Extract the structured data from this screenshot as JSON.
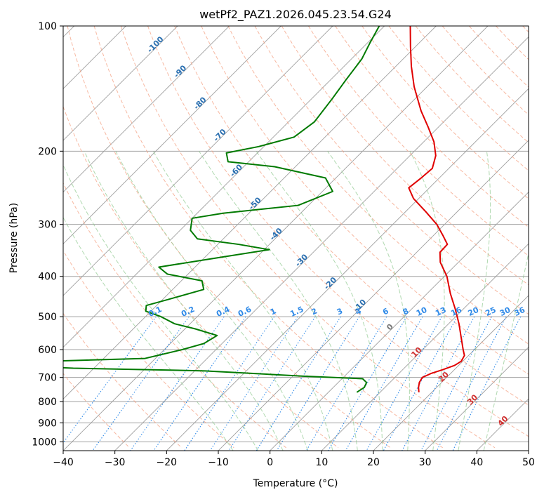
{
  "chart_data": {
    "type": "skew-t",
    "title": "wetPf2_PAZ1.2026.045.23.54.G24",
    "xlabel": "Temperature (°C)",
    "ylabel": "Pressure (hPa)",
    "xlim": [
      -40,
      50
    ],
    "ylim": [
      1050,
      100
    ],
    "x_ticks": [
      {
        "value": -40,
        "label": "−40"
      },
      {
        "value": -30,
        "label": "−30"
      },
      {
        "value": -20,
        "label": "−20"
      },
      {
        "value": -10,
        "label": "−10"
      },
      {
        "value": 0,
        "label": "0"
      },
      {
        "value": 10,
        "label": "10"
      },
      {
        "value": 20,
        "label": "20"
      },
      {
        "value": 30,
        "label": "30"
      },
      {
        "value": 40,
        "label": "40"
      },
      {
        "value": 50,
        "label": "50"
      }
    ],
    "y_ticks": [
      {
        "value": 100,
        "label": "100"
      },
      {
        "value": 200,
        "label": "200"
      },
      {
        "value": 300,
        "label": "300"
      },
      {
        "value": 400,
        "label": "400"
      },
      {
        "value": 500,
        "label": "500"
      },
      {
        "value": 600,
        "label": "600"
      },
      {
        "value": 700,
        "label": "700"
      },
      {
        "value": 800,
        "label": "800"
      },
      {
        "value": 900,
        "label": "900"
      },
      {
        "value": 1000,
        "label": "1000"
      }
    ],
    "temperature_profile": {
      "name": "Temperature",
      "color": "#e00000",
      "points": [
        {
          "p": 760,
          "t": 17.5
        },
        {
          "p": 740,
          "t": 16.5
        },
        {
          "p": 720,
          "t": 15.7
        },
        {
          "p": 700,
          "t": 15.3
        },
        {
          "p": 685,
          "t": 16.2
        },
        {
          "p": 670,
          "t": 17.8
        },
        {
          "p": 655,
          "t": 19.2
        },
        {
          "p": 640,
          "t": 19.7
        },
        {
          "p": 620,
          "t": 19.2
        },
        {
          "p": 600,
          "t": 17.8
        },
        {
          "p": 560,
          "t": 15.0
        },
        {
          "p": 520,
          "t": 12.0
        },
        {
          "p": 480,
          "t": 8.5
        },
        {
          "p": 440,
          "t": 4.5
        },
        {
          "p": 400,
          "t": 0.5
        },
        {
          "p": 370,
          "t": -3.5
        },
        {
          "p": 350,
          "t": -5.5
        },
        {
          "p": 335,
          "t": -5.6
        },
        {
          "p": 320,
          "t": -8.0
        },
        {
          "p": 300,
          "t": -11.5
        },
        {
          "p": 280,
          "t": -16.0
        },
        {
          "p": 260,
          "t": -21.0
        },
        {
          "p": 245,
          "t": -24.0
        },
        {
          "p": 232,
          "t": -23.5
        },
        {
          "p": 220,
          "t": -23.2
        },
        {
          "p": 205,
          "t": -25.0
        },
        {
          "p": 190,
          "t": -28.0
        },
        {
          "p": 175,
          "t": -32.0
        },
        {
          "p": 160,
          "t": -36.5
        },
        {
          "p": 140,
          "t": -42.5
        },
        {
          "p": 125,
          "t": -47.0
        },
        {
          "p": 112,
          "t": -51.0
        },
        {
          "p": 100,
          "t": -55.0
        }
      ]
    },
    "dewpoint_profile": {
      "name": "Dewpoint",
      "color": "#007a00",
      "points": [
        {
          "p": 760,
          "t": 5.5
        },
        {
          "p": 740,
          "t": 6.0
        },
        {
          "p": 720,
          "t": 5.5
        },
        {
          "p": 705,
          "t": 4.0
        },
        {
          "p": 695,
          "t": -8.0
        },
        {
          "p": 675,
          "t": -28.0
        },
        {
          "p": 665,
          "t": -54.0
        },
        {
          "p": 660,
          "t": -60.0
        },
        {
          "p": 640,
          "t": -60.0
        },
        {
          "p": 630,
          "t": -42.0
        },
        {
          "p": 600,
          "t": -36.5
        },
        {
          "p": 580,
          "t": -33.5
        },
        {
          "p": 555,
          "t": -32.5
        },
        {
          "p": 535,
          "t": -38.0
        },
        {
          "p": 520,
          "t": -43.0
        },
        {
          "p": 500,
          "t": -47.0
        },
        {
          "p": 485,
          "t": -51.0
        },
        {
          "p": 470,
          "t": -52.0
        },
        {
          "p": 455,
          "t": -49.0
        },
        {
          "p": 430,
          "t": -44.0
        },
        {
          "p": 410,
          "t": -46.0
        },
        {
          "p": 395,
          "t": -54.0
        },
        {
          "p": 380,
          "t": -57.0
        },
        {
          "p": 362,
          "t": -48.0
        },
        {
          "p": 345,
          "t": -39.0
        },
        {
          "p": 335,
          "t": -46.0
        },
        {
          "p": 325,
          "t": -55.0
        },
        {
          "p": 310,
          "t": -58.0
        },
        {
          "p": 290,
          "t": -60.0
        },
        {
          "p": 282,
          "t": -55.0
        },
        {
          "p": 270,
          "t": -42.0
        },
        {
          "p": 250,
          "t": -38.0
        },
        {
          "p": 232,
          "t": -42.0
        },
        {
          "p": 218,
          "t": -54.0
        },
        {
          "p": 212,
          "t": -64.0
        },
        {
          "p": 202,
          "t": -66.0
        },
        {
          "p": 195,
          "t": -61.0
        },
        {
          "p": 185,
          "t": -56.0
        },
        {
          "p": 170,
          "t": -55.0
        },
        {
          "p": 150,
          "t": -56.0
        },
        {
          "p": 135,
          "t": -57.0
        },
        {
          "p": 120,
          "t": -58.0
        },
        {
          "p": 110,
          "t": -59.5
        },
        {
          "p": 100,
          "t": -61.0
        }
      ]
    },
    "dry_adiabats_c": [
      -30,
      -20,
      -10,
      0,
      10,
      20,
      30,
      40,
      50,
      60,
      70,
      80,
      90,
      100,
      110,
      120,
      130,
      140,
      150,
      160,
      170,
      180,
      190,
      200
    ],
    "moist_adiabats_c": [
      -10,
      -5,
      0,
      5,
      10,
      15,
      20,
      25,
      30,
      35,
      40
    ],
    "mixing_ratio_lines": [
      {
        "w": 0.1,
        "label": "0.1"
      },
      {
        "w": 0.2,
        "label": "0.2"
      },
      {
        "w": 0.4,
        "label": "0.4"
      },
      {
        "w": 0.6,
        "label": "0.6"
      },
      {
        "w": 1,
        "label": "1"
      },
      {
        "w": 1.5,
        "label": "1.5"
      },
      {
        "w": 2,
        "label": "2"
      },
      {
        "w": 3,
        "label": "3"
      },
      {
        "w": 4,
        "label": "4"
      },
      {
        "w": 6,
        "label": "6"
      },
      {
        "w": 8,
        "label": "8"
      },
      {
        "w": 10,
        "label": "10"
      },
      {
        "w": 13,
        "label": "13"
      },
      {
        "w": 16,
        "label": "16"
      },
      {
        "w": 20,
        "label": "20"
      },
      {
        "w": 25,
        "label": "25"
      },
      {
        "w": 30,
        "label": "30"
      },
      {
        "w": 36,
        "label": "36"
      }
    ],
    "isotherm_labels": [
      {
        "t": -100,
        "p": 112,
        "label": "-100",
        "color": "#2a6fb0"
      },
      {
        "t": -90,
        "p": 130,
        "label": "-90",
        "color": "#2a6fb0"
      },
      {
        "t": -80,
        "p": 155,
        "label": "-80",
        "color": "#2a6fb0"
      },
      {
        "t": -70,
        "p": 185,
        "label": "-70",
        "color": "#2a6fb0"
      },
      {
        "t": -60,
        "p": 225,
        "label": "-60",
        "color": "#2a6fb0"
      },
      {
        "t": -50,
        "p": 270,
        "label": "-50",
        "color": "#2a6fb0"
      },
      {
        "t": -40,
        "p": 320,
        "label": "-40",
        "color": "#2a6fb0"
      },
      {
        "t": -30,
        "p": 370,
        "label": "-30",
        "color": "#2a6fb0"
      },
      {
        "t": -20,
        "p": 420,
        "label": "-20",
        "color": "#2a6fb0"
      },
      {
        "t": -10,
        "p": 475,
        "label": "-10",
        "color": "#2a6fb0"
      },
      {
        "t": 0,
        "p": 535,
        "label": "0",
        "color": "#777777"
      },
      {
        "t": 10,
        "p": 615,
        "label": "10",
        "color": "#d03030"
      },
      {
        "t": 20,
        "p": 705,
        "label": "20",
        "color": "#d03030"
      },
      {
        "t": 30,
        "p": 800,
        "label": "30",
        "color": "#d03030"
      },
      {
        "t": 40,
        "p": 900,
        "label": "40",
        "color": "#d03030"
      }
    ],
    "colors": {
      "temperature": "#e00000",
      "dewpoint": "#007a00",
      "isotherm": "#a0a0a0",
      "dry_adiabat": "#f4a082",
      "moist_adiabat": "#8fc98f",
      "mixing_ratio": "#2f8ae8",
      "mixing_label": "#2f8ae8"
    }
  }
}
